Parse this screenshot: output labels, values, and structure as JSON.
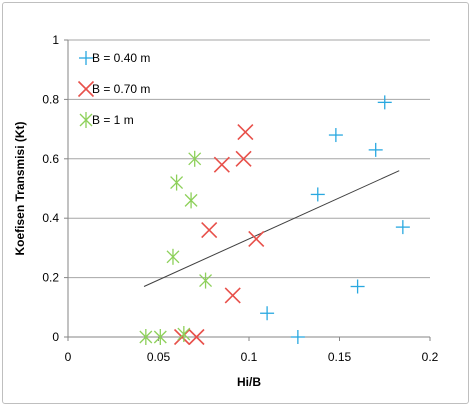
{
  "chart_data": {
    "type": "scatter",
    "title": "",
    "xlabel": "Hi/B",
    "ylabel": "Koefisen Transmisi  (Kt)",
    "xlim": [
      0,
      0.2
    ],
    "ylim": [
      0,
      1
    ],
    "x_ticks": [
      "0",
      "0.05",
      "0.1",
      "0.15",
      "0.2"
    ],
    "y_ticks": [
      "0",
      "0.2",
      "0.4",
      "0.6",
      "0.8",
      "1"
    ],
    "grid": "horizontal",
    "legend_position": "top-left",
    "series": [
      {
        "name": "B = 0.40 m",
        "marker": "plus",
        "color": "#29a8e0",
        "points": [
          [
            0.175,
            0.79
          ],
          [
            0.148,
            0.68
          ],
          [
            0.17,
            0.63
          ],
          [
            0.138,
            0.48
          ],
          [
            0.185,
            0.37
          ],
          [
            0.16,
            0.17
          ],
          [
            0.11,
            0.08
          ],
          [
            0.127,
            0.0
          ]
        ]
      },
      {
        "name": "B = 0.70 m",
        "marker": "cross",
        "color": "#e8504a",
        "points": [
          [
            0.098,
            0.69
          ],
          [
            0.085,
            0.58
          ],
          [
            0.097,
            0.6
          ],
          [
            0.078,
            0.36
          ],
          [
            0.104,
            0.33
          ],
          [
            0.091,
            0.14
          ],
          [
            0.063,
            0.0
          ],
          [
            0.071,
            0.0
          ]
        ]
      },
      {
        "name": "B = 1 m",
        "marker": "asterisk",
        "color": "#8dd05a",
        "points": [
          [
            0.07,
            0.6
          ],
          [
            0.06,
            0.52
          ],
          [
            0.068,
            0.46
          ],
          [
            0.058,
            0.27
          ],
          [
            0.076,
            0.19
          ],
          [
            0.043,
            0.0
          ],
          [
            0.051,
            0.0
          ],
          [
            0.064,
            0.01
          ]
        ]
      }
    ],
    "trendline": {
      "color": "#404040",
      "x": [
        0.042,
        0.183
      ],
      "y": [
        0.17,
        0.56
      ]
    }
  }
}
